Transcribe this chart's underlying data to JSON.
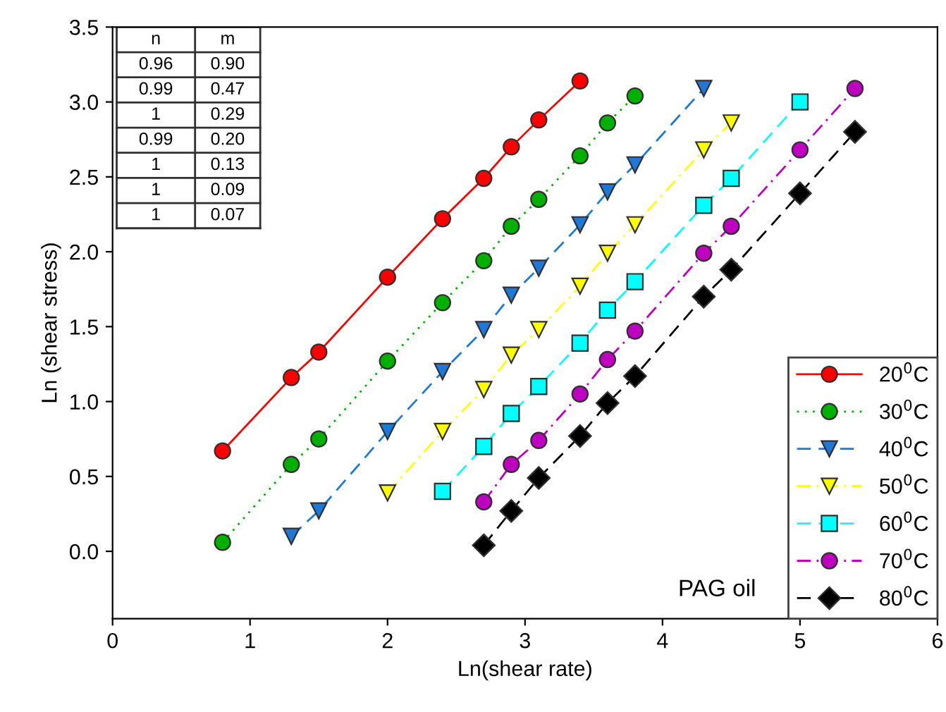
{
  "chart_data": {
    "type": "line",
    "xlabel": "Ln(shear rate)",
    "ylabel": "Ln (shear stress)",
    "xlim": [
      0,
      6
    ],
    "ylim": [
      -0.45,
      3.5
    ],
    "xticks": [
      0,
      1,
      2,
      3,
      4,
      5,
      6
    ],
    "yticks": [
      {
        "value": 0,
        "label": "0.0"
      },
      0.5,
      {
        "value": 1,
        "label": "1.0"
      },
      1.5,
      {
        "value": 2,
        "label": "2.0"
      },
      2.5,
      {
        "value": 3,
        "label": "3.0"
      },
      3.5
    ],
    "grid": false,
    "legend": "bottom right",
    "annotations": [
      "n",
      "m",
      "0.96",
      "0.90",
      "0.99",
      "0.47",
      "1",
      "0.29",
      "0.99",
      "0.20",
      "1",
      "0.13",
      "1",
      "0.09",
      "1",
      "0.07",
      "PAG oil"
    ],
    "series": [
      {
        "name": "20$^{0}$C",
        "color": "#ff0000",
        "marker": "circle",
        "line_style": "solid",
        "x": [
          0.8,
          1.3,
          1.5,
          2.0,
          2.4,
          2.7,
          2.9,
          3.1,
          3.4
        ],
        "values": [
          0.67,
          1.16,
          1.33,
          1.83,
          2.22,
          2.49,
          2.7,
          2.88,
          3.14
        ]
      },
      {
        "name": "30$^{0}$C",
        "color": "#00b000",
        "marker": "circle",
        "line_style": "dotted",
        "x": [
          0.8,
          1.3,
          1.5,
          2.0,
          2.4,
          2.7,
          2.9,
          3.1,
          3.4,
          3.6,
          3.8
        ],
        "values": [
          0.06,
          0.58,
          0.75,
          1.27,
          1.66,
          1.94,
          2.17,
          2.35,
          2.64,
          2.86,
          3.04
        ]
      },
      {
        "name": "40$^{0}$C",
        "color": "#1e78d8",
        "marker": "triangle",
        "line_style": "dashed",
        "x": [
          1.3,
          1.5,
          2.0,
          2.4,
          2.7,
          2.9,
          3.1,
          3.4,
          3.6,
          3.8,
          4.3
        ],
        "values": [
          0.1,
          0.27,
          0.8,
          1.2,
          1.48,
          1.71,
          1.89,
          2.18,
          2.4,
          2.58,
          3.09
        ]
      },
      {
        "name": "50$^{0}$C",
        "color": "#ffff00",
        "marker": "triangle",
        "line_style": "dashdot",
        "x": [
          2.0,
          2.4,
          2.7,
          2.9,
          3.1,
          3.4,
          3.6,
          3.8,
          4.3,
          4.5
        ],
        "values": [
          0.39,
          0.8,
          1.08,
          1.31,
          1.48,
          1.77,
          1.99,
          2.18,
          2.68,
          2.86
        ]
      },
      {
        "name": "60$^{0}$C",
        "color": "#00ffff",
        "marker": "square",
        "line_style": "dashed",
        "x": [
          2.4,
          2.7,
          2.9,
          3.1,
          3.4,
          3.6,
          3.8,
          4.3,
          4.5,
          5.0
        ],
        "values": [
          0.4,
          0.7,
          0.92,
          1.1,
          1.39,
          1.61,
          1.8,
          2.31,
          2.49,
          3.0
        ]
      },
      {
        "name": "70$^{0}$C",
        "color": "#c000c0",
        "marker": "circle",
        "line_style": "dashdot",
        "x": [
          2.7,
          2.9,
          3.1,
          3.4,
          3.6,
          3.8,
          4.3,
          4.5,
          5.0,
          5.4
        ],
        "values": [
          0.33,
          0.58,
          0.74,
          1.05,
          1.28,
          1.47,
          1.99,
          2.17,
          2.68,
          3.09
        ]
      },
      {
        "name": "80$^{0}$C",
        "color": "#000000",
        "marker": "diamond",
        "line_style": "dashed",
        "x": [
          2.7,
          2.9,
          3.1,
          3.4,
          3.6,
          3.8,
          4.3,
          4.5,
          5.0,
          5.4
        ],
        "values": [
          0.04,
          0.27,
          0.49,
          0.77,
          0.99,
          1.17,
          1.7,
          1.88,
          2.39,
          2.8
        ]
      }
    ]
  }
}
